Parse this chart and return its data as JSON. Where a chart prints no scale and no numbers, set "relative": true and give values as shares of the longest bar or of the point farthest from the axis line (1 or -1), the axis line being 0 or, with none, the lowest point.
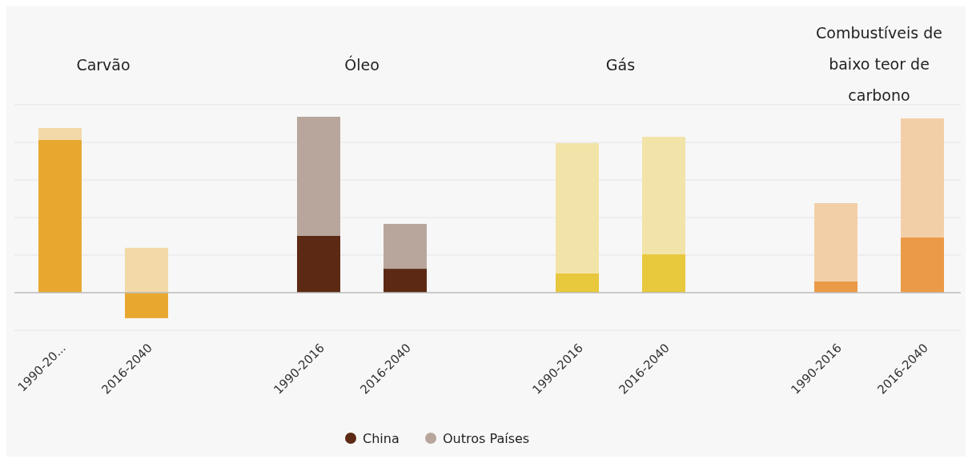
{
  "chart_data": {
    "type": "bar",
    "stacked": true,
    "relative": true,
    "grid": true,
    "legend": "bottom",
    "categories": [
      "1990-20...",
      "2016-2040",
      "1990-2016",
      "2016-2040",
      "1990-2016",
      "2016-2040",
      "1990-2016",
      "2016-2040"
    ],
    "series": [
      {
        "name": "China",
        "color": "#5c2a14",
        "values": [
          0.868,
          -0.145,
          0.323,
          0.136,
          0.109,
          0.218,
          0.064,
          0.314
        ],
        "colors": [
          "#e8a830",
          "#e8a830",
          "#5c2a14",
          "#5c2a14",
          "#e8c83c",
          "#e8c83c",
          "#eb9a48",
          "#eb9a48"
        ]
      },
      {
        "name": "Outros Países",
        "color": "#b8a69c",
        "values": [
          0.068,
          0.255,
          0.677,
          0.255,
          0.741,
          0.668,
          0.445,
          0.677
        ],
        "colors": [
          "#f3d9a8",
          "#f3d9a8",
          "#b8a69c",
          "#b8a69c",
          "#f2e4a8",
          "#f2e4a8",
          "#f3cfa8",
          "#f3cfa8"
        ]
      }
    ],
    "annotations": [
      "Carvão",
      "Óleo",
      "Gás",
      "Combustíveis de baixo teor de carbono"
    ]
  }
}
